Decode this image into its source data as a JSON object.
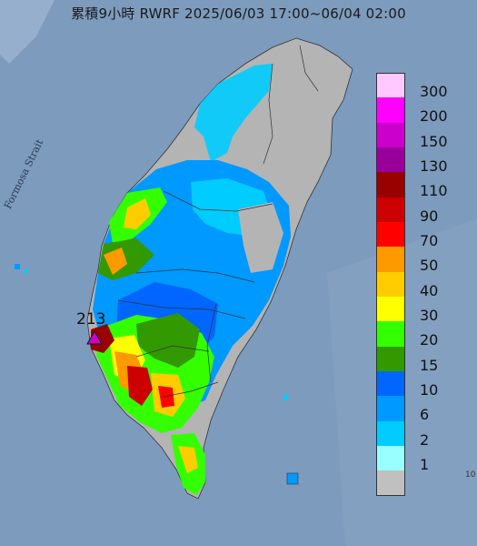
{
  "header": {
    "title": "累積9小時 RWRF 2025/06/03 17:00~06/04 02:00"
  },
  "map_labels": {
    "strait": "Formosa Strait",
    "peak_value": "213",
    "edge_tick": "10"
  },
  "legend": {
    "entries": [
      {
        "label": "300",
        "color": "#ffc8ff"
      },
      {
        "label": "200",
        "color": "#ff00ff"
      },
      {
        "label": "150",
        "color": "#cc00cc"
      },
      {
        "label": "130",
        "color": "#990099"
      },
      {
        "label": "110",
        "color": "#990000"
      },
      {
        "label": "90",
        "color": "#cc0000"
      },
      {
        "label": "70",
        "color": "#ff0000"
      },
      {
        "label": "50",
        "color": "#ff9900"
      },
      {
        "label": "40",
        "color": "#ffcc00"
      },
      {
        "label": "30",
        "color": "#ffff00"
      },
      {
        "label": "20",
        "color": "#33ff00"
      },
      {
        "label": "15",
        "color": "#339900"
      },
      {
        "label": "10",
        "color": "#0066ff"
      },
      {
        "label": "6",
        "color": "#0099ff"
      },
      {
        "label": "2",
        "color": "#00ccff"
      },
      {
        "label": "1",
        "color": "#99ffff"
      },
      {
        "label": "",
        "color": "#c0c0c0"
      }
    ]
  },
  "colors": {
    "sea": "#7d9bbd",
    "no_rain": "#b4b4b4"
  }
}
